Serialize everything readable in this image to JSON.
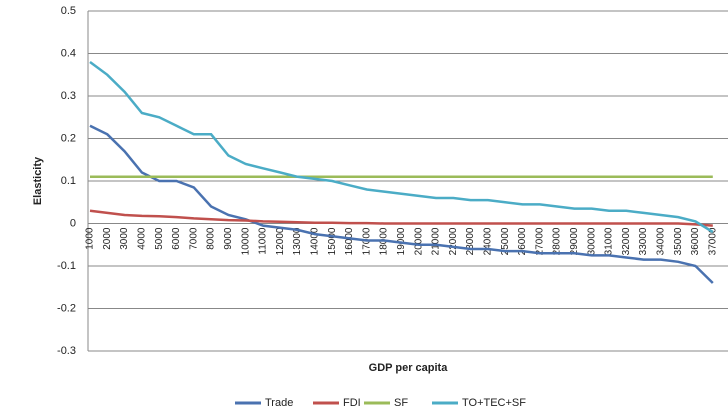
{
  "chart_data": {
    "type": "line",
    "y_axis_label": "Elasticity",
    "x_axis_label": "GDP per capita",
    "categories": [
      "1000",
      "2000",
      "3000",
      "4000",
      "5000",
      "6000",
      "7000",
      "8000",
      "9000",
      "10000",
      "11000",
      "12000",
      "13000",
      "14000",
      "15000",
      "16000",
      "17000",
      "18000",
      "19000",
      "20000",
      "21000",
      "22000",
      "23000",
      "24000",
      "25000",
      "26000",
      "27000",
      "28000",
      "29000",
      "30000",
      "31000",
      "32000",
      "33000",
      "34000",
      "35000",
      "36000",
      "37000"
    ],
    "series": [
      {
        "name": "Trade",
        "color": "#4a72b0",
        "values": [
          0.23,
          0.21,
          0.17,
          0.12,
          0.1,
          0.1,
          0.085,
          0.04,
          0.02,
          0.01,
          -0.005,
          -0.01,
          -0.015,
          -0.025,
          -0.03,
          -0.035,
          -0.04,
          -0.04,
          -0.045,
          -0.05,
          -0.05,
          -0.055,
          -0.06,
          -0.06,
          -0.065,
          -0.065,
          -0.07,
          -0.07,
          -0.07,
          -0.075,
          -0.075,
          -0.08,
          -0.085,
          -0.085,
          -0.09,
          -0.1,
          -0.14
        ]
      },
      {
        "name": "FDI",
        "color": "#c0504d",
        "values": [
          0.03,
          0.025,
          0.02,
          0.018,
          0.017,
          0.015,
          0.012,
          0.01,
          0.008,
          0.007,
          0.005,
          0.004,
          0.003,
          0.002,
          0.002,
          0.001,
          0.001,
          0,
          0,
          0,
          0,
          0,
          0,
          0,
          0,
          0,
          0,
          0,
          0,
          0,
          0,
          0,
          0,
          0,
          0,
          -0.002,
          -0.005
        ]
      },
      {
        "name": "SF",
        "color": "#9bbb59",
        "values": [
          0.11,
          0.11,
          0.11,
          0.11,
          0.11,
          0.11,
          0.11,
          0.11,
          0.11,
          0.11,
          0.11,
          0.11,
          0.11,
          0.11,
          0.11,
          0.11,
          0.11,
          0.11,
          0.11,
          0.11,
          0.11,
          0.11,
          0.11,
          0.11,
          0.11,
          0.11,
          0.11,
          0.11,
          0.11,
          0.11,
          0.11,
          0.11,
          0.11,
          0.11,
          0.11,
          0.11,
          0.11
        ]
      },
      {
        "name": "TO+TEC+SF",
        "color": "#4bacc6",
        "values": [
          0.38,
          0.35,
          0.31,
          0.26,
          0.25,
          0.23,
          0.21,
          0.21,
          0.16,
          0.14,
          0.13,
          0.12,
          0.11,
          0.105,
          0.1,
          0.09,
          0.08,
          0.075,
          0.07,
          0.065,
          0.06,
          0.06,
          0.055,
          0.055,
          0.05,
          0.045,
          0.045,
          0.04,
          0.035,
          0.035,
          0.03,
          0.03,
          0.025,
          0.02,
          0.015,
          0.005,
          -0.02
        ]
      }
    ],
    "ylim": [
      -0.3,
      0.5
    ],
    "yticks": [
      -0.3,
      -0.2,
      -0.1,
      0,
      0.1,
      0.2,
      0.3,
      0.4,
      0.5
    ],
    "grid": true,
    "legend": "bottom"
  }
}
